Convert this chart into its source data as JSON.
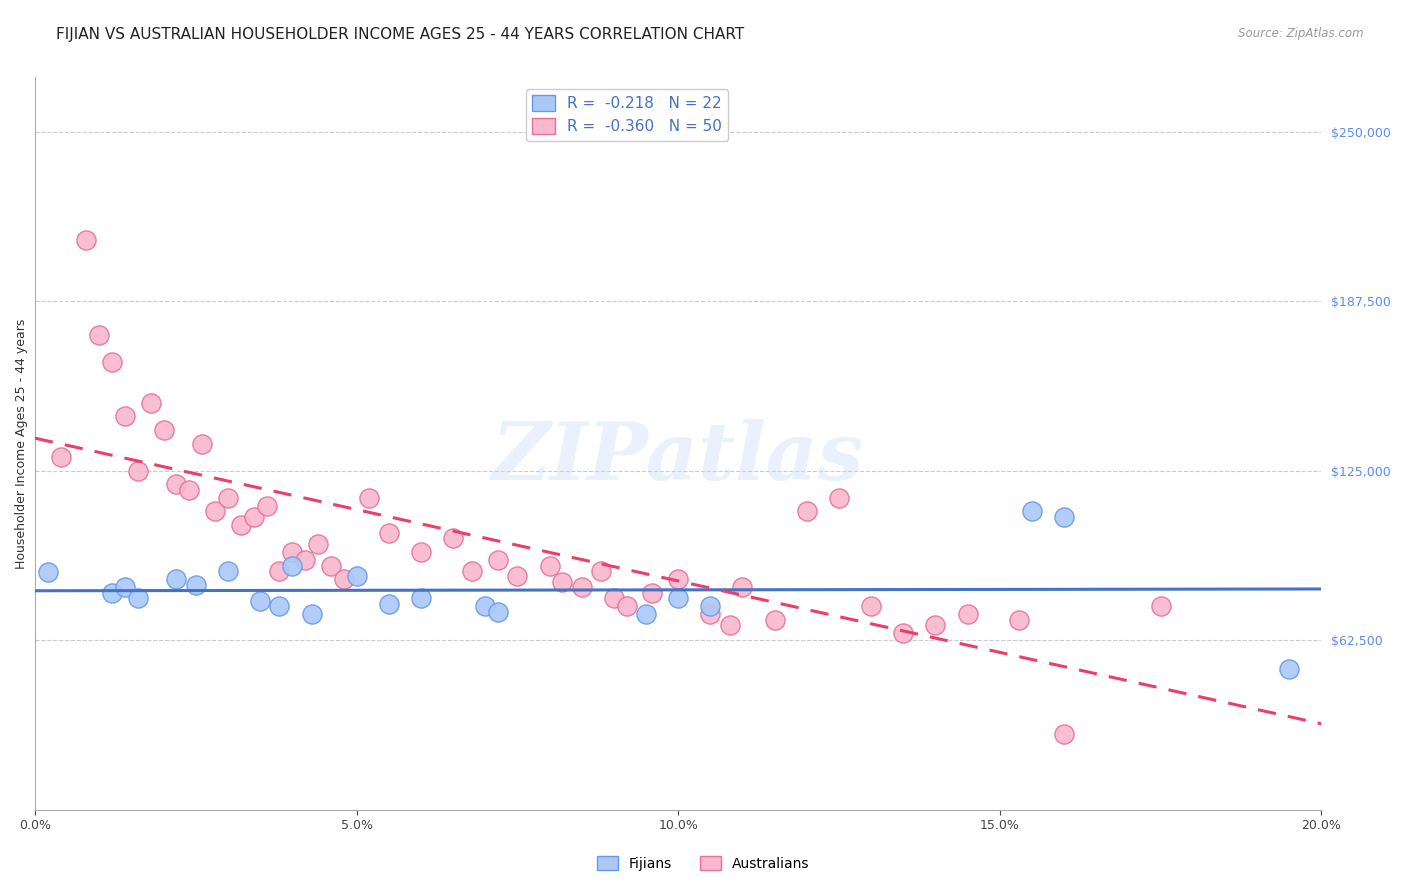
{
  "title": "FIJIAN VS AUSTRALIAN HOUSEHOLDER INCOME AGES 25 - 44 YEARS CORRELATION CHART",
  "source": "Source: ZipAtlas.com",
  "xlabel_ticks": [
    "0.0%",
    "5.0%",
    "10.0%",
    "15.0%",
    "20.0%"
  ],
  "xlabel_tick_vals": [
    0.0,
    0.05,
    0.1,
    0.15,
    0.2
  ],
  "ylabel": "Householder Income Ages 25 - 44 years",
  "ylabel_right_labels": [
    "$250,000",
    "$187,500",
    "$125,000",
    "$62,500"
  ],
  "ylabel_right_vals": [
    250000,
    187500,
    125000,
    62500
  ],
  "xlim": [
    0.0,
    0.2
  ],
  "ylim": [
    0,
    270000
  ],
  "legend_r_fijians": "-0.218",
  "legend_n_fijians": "22",
  "legend_r_australians": "-0.360",
  "legend_n_australians": "50",
  "fijian_color": "#aac9f8",
  "fijian_edge_color": "#6699ee",
  "australian_color": "#f9b8cc",
  "australian_edge_color": "#e8709a",
  "fijian_line_color": "#4472c4",
  "australian_line_color": "#e8406a",
  "fijian_scatter_x": [
    0.002,
    0.012,
    0.014,
    0.016,
    0.022,
    0.025,
    0.03,
    0.035,
    0.038,
    0.04,
    0.043,
    0.05,
    0.055,
    0.06,
    0.07,
    0.072,
    0.095,
    0.1,
    0.105,
    0.155,
    0.16,
    0.195
  ],
  "fijian_scatter_y": [
    87500,
    80000,
    82000,
    78000,
    85000,
    83000,
    88000,
    77000,
    75000,
    90000,
    72000,
    86000,
    76000,
    78000,
    75000,
    73000,
    72000,
    78000,
    75000,
    110000,
    108000,
    52000
  ],
  "australian_scatter_x": [
    0.004,
    0.008,
    0.01,
    0.012,
    0.014,
    0.016,
    0.018,
    0.02,
    0.022,
    0.024,
    0.026,
    0.028,
    0.03,
    0.032,
    0.034,
    0.036,
    0.038,
    0.04,
    0.042,
    0.044,
    0.046,
    0.048,
    0.052,
    0.055,
    0.06,
    0.065,
    0.068,
    0.072,
    0.075,
    0.08,
    0.082,
    0.085,
    0.088,
    0.09,
    0.092,
    0.096,
    0.1,
    0.105,
    0.108,
    0.11,
    0.115,
    0.12,
    0.125,
    0.13,
    0.135,
    0.14,
    0.145,
    0.153,
    0.16,
    0.175
  ],
  "australian_scatter_y": [
    130000,
    210000,
    175000,
    165000,
    145000,
    125000,
    150000,
    140000,
    120000,
    118000,
    135000,
    110000,
    115000,
    105000,
    108000,
    112000,
    88000,
    95000,
    92000,
    98000,
    90000,
    85000,
    115000,
    102000,
    95000,
    100000,
    88000,
    92000,
    86000,
    90000,
    84000,
    82000,
    88000,
    78000,
    75000,
    80000,
    85000,
    72000,
    68000,
    82000,
    70000,
    110000,
    115000,
    75000,
    65000,
    68000,
    72000,
    70000,
    28000,
    75000
  ],
  "watermark_text": "ZIPatlas",
  "background_color": "#ffffff",
  "grid_color": "#cccccc",
  "title_fontsize": 11,
  "axis_label_fontsize": 9,
  "tick_fontsize": 9,
  "legend_fontsize": 11,
  "right_label_color": "#5b8dee"
}
